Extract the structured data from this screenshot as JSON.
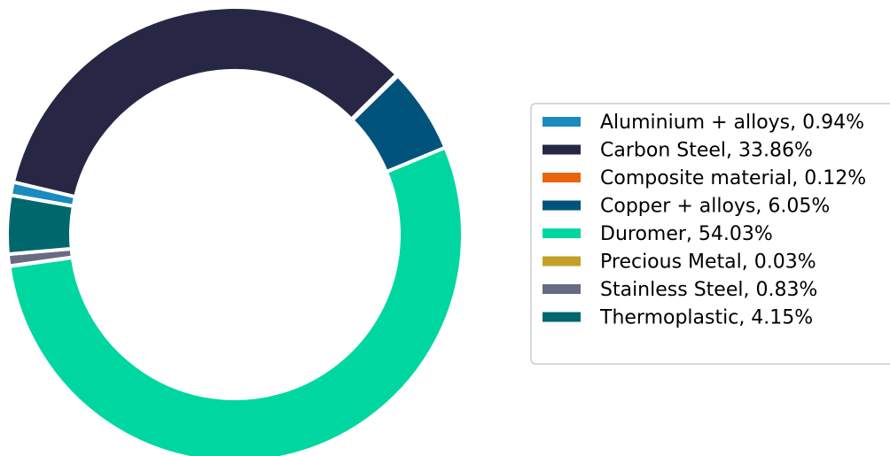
{
  "chart_data": {
    "type": "pie",
    "variant": "donut",
    "title": "",
    "legend_placement": "right",
    "slices": [
      {
        "label": "Aluminium + alloys",
        "value": 0.94,
        "legend_text": "Aluminium + alloys, 0.94%",
        "color": "#1a8abf"
      },
      {
        "label": "Carbon Steel",
        "value": 33.86,
        "legend_text": "Carbon Steel, 33.86%",
        "color": "#272745"
      },
      {
        "label": "Composite material",
        "value": 0.12,
        "legend_text": "Composite material, 0.12%",
        "color": "#e8650c"
      },
      {
        "label": "Copper + alloys",
        "value": 6.05,
        "legend_text": "Copper + alloys, 6.05%",
        "color": "#00547c"
      },
      {
        "label": "Duromer",
        "value": 54.03,
        "legend_text": "Duromer, 54.03%",
        "color": "#00d7a0"
      },
      {
        "label": "Precious Metal",
        "value": 0.03,
        "legend_text": "Precious Metal, 0.03%",
        "color": "#c3a028"
      },
      {
        "label": "Stainless Steel",
        "value": 0.83,
        "legend_text": "Stainless Steel, 0.83%",
        "color": "#696b84"
      },
      {
        "label": "Thermoplastic",
        "value": 4.15,
        "legend_text": "Thermoplastic, 4.15%",
        "color": "#00676c"
      }
    ]
  }
}
